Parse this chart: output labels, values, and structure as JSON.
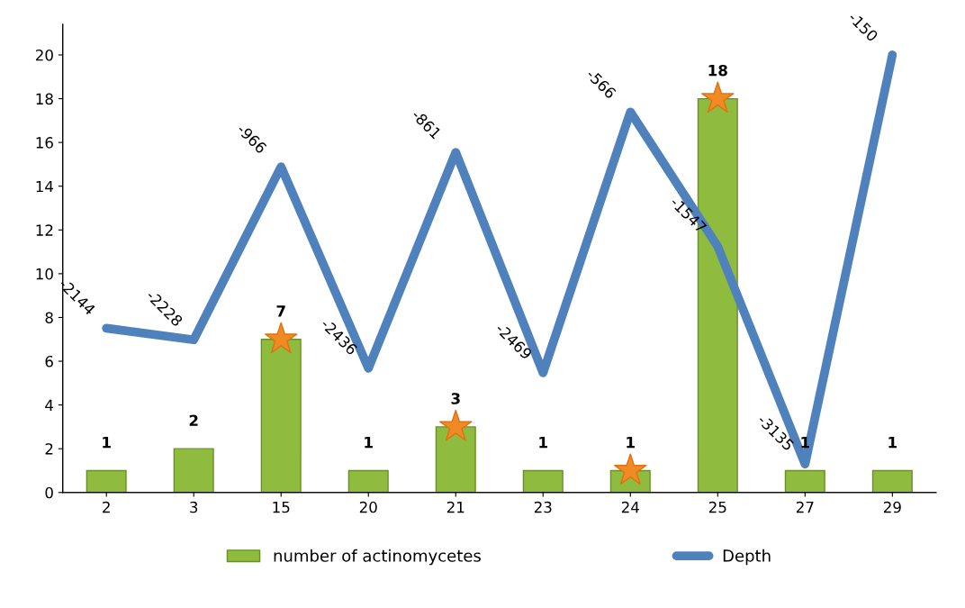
{
  "chart_data": {
    "type": "bar",
    "categories": [
      "2",
      "3",
      "15",
      "20",
      "21",
      "23",
      "24",
      "25",
      "27",
      "29"
    ],
    "series": [
      {
        "name": "number of actinomycetes",
        "color": "#8fbc3f",
        "values": [
          1,
          2,
          7,
          1,
          3,
          1,
          1,
          18,
          1,
          1
        ],
        "data_labels": true
      },
      {
        "name": "Depth",
        "type": "line",
        "axis": "y2",
        "color": "#4f81bd",
        "values": [
          -2144,
          -2228,
          -966,
          -2436,
          -861,
          -2469,
          -566,
          -1547,
          -3135,
          -150
        ],
        "data_labels": true
      },
      {
        "type": "scatter",
        "color": "#f08a24",
        "marker": "star",
        "values": [
          null,
          null,
          7,
          null,
          3,
          null,
          1,
          18,
          null,
          null
        ]
      }
    ],
    "ylim": [
      0,
      21.4
    ],
    "yticks": [
      0,
      2,
      4,
      6,
      8,
      10,
      12,
      14,
      16,
      18,
      20
    ],
    "y2lim": [
      -3342,
      73
    ],
    "tick_labels": [
      "x",
      "y"
    ],
    "grid": false,
    "legend": "bottom"
  }
}
